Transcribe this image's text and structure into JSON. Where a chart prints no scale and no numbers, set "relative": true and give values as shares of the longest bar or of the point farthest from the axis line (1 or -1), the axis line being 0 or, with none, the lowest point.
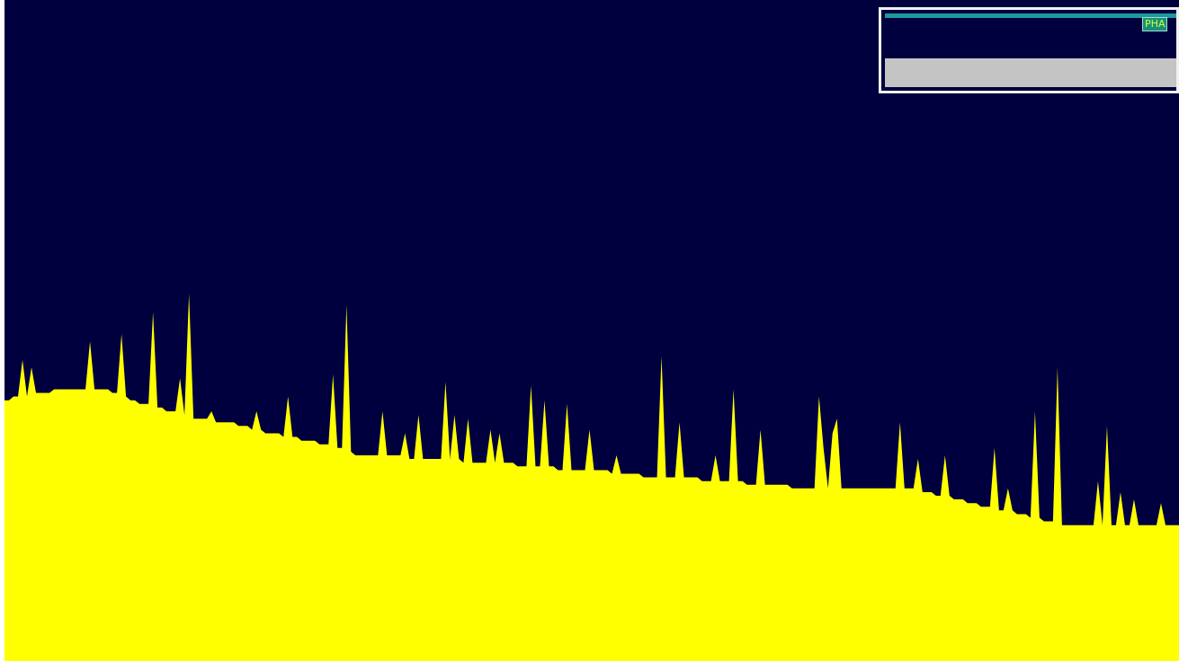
{
  "chart_data": {
    "type": "area",
    "relative": true,
    "legend": false,
    "marker": "none",
    "annotations": [
      "PHA"
    ],
    "categories": [
      null,
      null,
      null,
      null,
      null,
      null,
      null,
      null,
      null,
      null,
      null,
      null,
      null,
      null,
      null,
      null,
      null,
      null,
      null,
      null,
      null,
      null,
      null,
      null,
      null,
      null,
      null,
      null,
      null,
      null,
      null,
      null,
      null,
      null,
      null,
      null,
      null,
      null,
      null,
      null,
      null,
      null,
      null,
      null,
      null,
      null,
      null,
      null,
      null,
      null,
      null,
      null,
      null,
      null,
      null,
      null,
      null,
      null,
      null,
      null,
      null,
      null,
      null,
      null,
      null,
      null,
      null,
      null,
      null,
      null,
      null,
      null,
      null,
      null,
      null,
      null,
      null,
      null,
      null,
      null,
      null,
      null,
      null,
      null,
      null,
      null,
      null,
      null,
      null,
      null,
      null,
      null,
      null,
      null,
      null,
      null,
      null,
      null,
      null,
      null,
      null,
      null,
      null,
      null,
      null,
      null,
      null,
      null,
      null,
      null,
      null,
      null,
      null,
      null,
      null,
      null,
      null,
      null,
      null,
      null,
      null,
      null,
      null,
      null,
      null,
      null,
      null,
      null,
      null,
      null,
      null,
      null,
      null,
      null,
      null,
      null,
      null,
      null,
      null,
      null,
      null,
      null,
      null,
      null,
      null,
      null,
      null,
      null,
      null,
      null,
      null,
      null,
      null,
      null,
      null,
      null,
      null,
      null,
      null,
      null,
      null,
      null,
      null,
      null,
      null,
      null,
      null,
      null,
      null,
      null,
      null,
      null,
      null,
      null,
      null,
      null,
      null,
      null,
      null,
      null,
      null,
      null,
      null,
      null,
      null,
      null,
      null,
      null,
      null,
      null,
      null,
      null,
      null,
      null,
      null,
      null,
      null,
      null,
      null,
      null,
      null,
      null,
      null,
      null,
      null,
      null,
      null,
      null,
      null,
      null,
      null,
      null,
      null,
      null,
      null,
      null,
      null,
      null,
      null,
      null,
      null,
      null,
      null,
      null,
      null,
      null,
      null,
      null,
      null,
      null,
      null,
      null,
      null,
      null,
      null,
      null,
      null,
      null,
      null,
      null,
      null,
      null,
      null,
      null,
      null,
      null,
      null,
      null,
      null,
      null,
      null,
      null,
      null,
      null,
      null,
      null,
      null,
      null,
      null,
      null,
      null,
      null
    ],
    "series": [
      {
        "color": "#ffff00",
        "values": [
          0.71,
          0.71,
          0.72,
          0.72,
          0.82,
          0.72,
          0.8,
          0.73,
          0.73,
          0.73,
          0.73,
          0.74,
          0.74,
          0.74,
          0.74,
          0.74,
          0.74,
          0.74,
          0.74,
          0.87,
          0.74,
          0.74,
          0.74,
          0.74,
          0.73,
          0.73,
          0.89,
          0.72,
          0.71,
          0.71,
          0.7,
          0.7,
          0.7,
          0.95,
          0.69,
          0.69,
          0.68,
          0.68,
          0.68,
          0.77,
          0.67,
          1.0,
          0.66,
          0.66,
          0.66,
          0.66,
          0.68,
          0.65,
          0.65,
          0.65,
          0.65,
          0.65,
          0.64,
          0.64,
          0.64,
          0.63,
          0.68,
          0.63,
          0.62,
          0.62,
          0.62,
          0.62,
          0.61,
          0.72,
          0.61,
          0.61,
          0.6,
          0.6,
          0.6,
          0.6,
          0.59,
          0.59,
          0.59,
          0.78,
          0.58,
          0.58,
          0.97,
          0.57,
          0.56,
          0.56,
          0.56,
          0.56,
          0.56,
          0.56,
          0.68,
          0.56,
          0.56,
          0.56,
          0.56,
          0.62,
          0.55,
          0.55,
          0.67,
          0.55,
          0.55,
          0.55,
          0.55,
          0.55,
          0.76,
          0.55,
          0.67,
          0.55,
          0.54,
          0.66,
          0.54,
          0.54,
          0.54,
          0.54,
          0.63,
          0.54,
          0.62,
          0.54,
          0.54,
          0.54,
          0.53,
          0.53,
          0.53,
          0.75,
          0.53,
          0.53,
          0.71,
          0.53,
          0.53,
          0.52,
          0.52,
          0.7,
          0.52,
          0.52,
          0.52,
          0.52,
          0.63,
          0.52,
          0.52,
          0.52,
          0.52,
          0.51,
          0.56,
          0.51,
          0.51,
          0.51,
          0.51,
          0.51,
          0.5,
          0.5,
          0.5,
          0.5,
          0.83,
          0.5,
          0.5,
          0.5,
          0.65,
          0.5,
          0.5,
          0.5,
          0.5,
          0.49,
          0.49,
          0.49,
          0.56,
          0.49,
          0.49,
          0.49,
          0.74,
          0.49,
          0.49,
          0.48,
          0.48,
          0.48,
          0.63,
          0.48,
          0.48,
          0.48,
          0.48,
          0.48,
          0.48,
          0.47,
          0.47,
          0.47,
          0.47,
          0.47,
          0.47,
          0.72,
          0.58,
          0.47,
          0.62,
          0.66,
          0.47,
          0.47,
          0.47,
          0.47,
          0.47,
          0.47,
          0.47,
          0.47,
          0.47,
          0.47,
          0.47,
          0.47,
          0.47,
          0.65,
          0.47,
          0.47,
          0.47,
          0.55,
          0.46,
          0.46,
          0.46,
          0.45,
          0.45,
          0.56,
          0.45,
          0.44,
          0.44,
          0.44,
          0.43,
          0.43,
          0.43,
          0.42,
          0.42,
          0.42,
          0.58,
          0.41,
          0.41,
          0.47,
          0.41,
          0.4,
          0.4,
          0.4,
          0.39,
          0.68,
          0.39,
          0.38,
          0.38,
          0.38,
          0.8,
          0.37,
          0.37,
          0.37,
          0.37,
          0.37,
          0.37,
          0.37,
          0.37,
          0.49,
          0.37,
          0.64,
          0.37,
          0.37,
          0.46,
          0.37,
          0.37,
          0.44,
          0.37,
          0.37,
          0.37,
          0.37,
          0.37,
          0.43,
          0.37,
          0.37,
          0.37,
          0.37
        ]
      }
    ]
  }
}
